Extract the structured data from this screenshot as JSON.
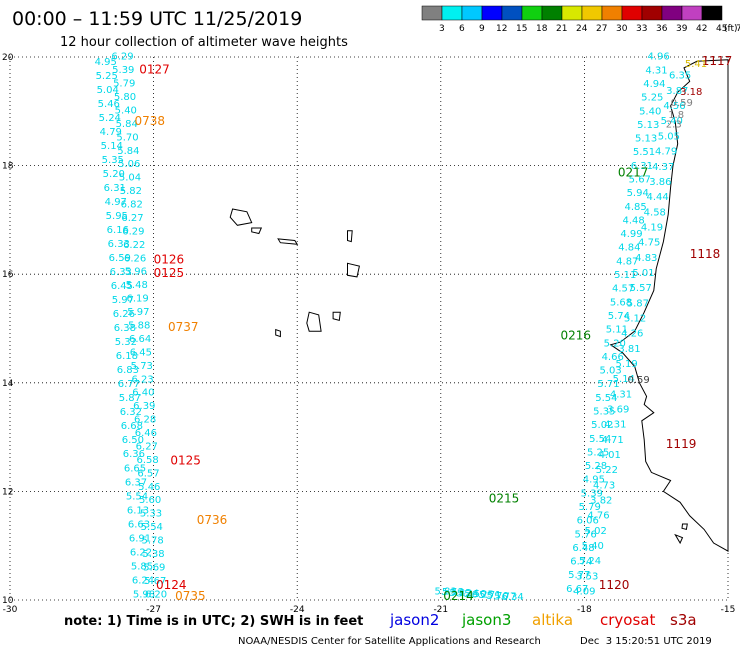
{
  "header": {
    "title": "00:00 – 11:59 UTC 11/25/2019",
    "subtitle": "12 hour collection of altimeter wave heights"
  },
  "colorbar": {
    "colors": [
      "#808080",
      "#00f0f0",
      "#00c8ff",
      "#0000ff",
      "#0050c0",
      "#10d010",
      "#008000",
      "#d8e800",
      "#f0c800",
      "#f08000",
      "#e00000",
      "#a00000",
      "#800080",
      "#c040c0",
      "#000000"
    ],
    "labels": [
      "3",
      "6",
      "9",
      "12",
      "15",
      "18",
      "21",
      "24",
      "27",
      "30",
      "33",
      "36",
      "39",
      "42",
      "45",
      "70",
      "(ft)"
    ]
  },
  "axes": {
    "lon_ticks": [
      "-30",
      "-27",
      "-24",
      "-21",
      "-18",
      "-15"
    ],
    "lat_ticks": [
      "10",
      "12",
      "14",
      "16",
      "18",
      "20"
    ]
  },
  "map_data": {
    "lon_range": [
      -30,
      -15
    ],
    "lat_range": [
      10,
      20
    ],
    "grid": "dotted",
    "tracks": [
      {
        "satellite": "jason3",
        "color": "#00d8e8",
        "start": [
          -27.65,
          19.95
        ],
        "end": [
          -26.95,
          10.05
        ],
        "values": [
          "6.29",
          "5.39",
          "5.79",
          "5.80",
          "5.40",
          "5.84",
          "5.70",
          "5.84",
          "5.06",
          "5.04",
          "5.82",
          "6.82",
          "6.27",
          "6.29",
          "6.22",
          "6.26",
          "5.96",
          "5.48",
          "6.19",
          "5.97",
          "5.88",
          "6.64",
          "6.45",
          "5.73",
          "6.23",
          "6.40",
          "6.39",
          "6.28",
          "6.46",
          "6.27",
          "6.58",
          "6.57",
          "5.46",
          "5.60",
          "5.33",
          "5.54",
          "5.78",
          "5.38",
          "5.69",
          "5.67",
          "6.20"
        ]
      },
      {
        "satellite": "jason3",
        "color": "#00d8e8",
        "start": [
          -28.0,
          19.85
        ],
        "end": [
          -27.2,
          10.05
        ],
        "values": [
          "4.95",
          "5.25",
          "5.04",
          "5.46",
          "5.24",
          "4.79",
          "5.14",
          "5.35",
          "5.20",
          "6.31",
          "4.97",
          "5.95",
          "6.16",
          "6.33",
          "6.59",
          "6.33",
          "6.45",
          "5.97",
          "6.26",
          "6.38",
          "5.32",
          "6.18",
          "6.83",
          "6.77",
          "5.87",
          "6.32",
          "6.68",
          "6.50",
          "6.36",
          "6.65",
          "6.37",
          "5.54",
          "6.13",
          "6.63",
          "6.91",
          "6.22",
          "5.85",
          "6.24",
          "5.98"
        ]
      },
      {
        "satellite": "jason3",
        "color": "#00d8e8",
        "start": [
          -16.45,
          19.95
        ],
        "end": [
          -18.15,
          10.15
        ],
        "values": [
          "4.96",
          "4.31",
          "4.94",
          "5.25",
          "5.40",
          "5.13",
          "5.13",
          "5.51",
          "6.31",
          "5.67",
          "5.94",
          "4.85",
          "4.48",
          "4.99",
          "4.84",
          "4.87",
          "5.11",
          "4.57",
          "5.68",
          "5.74",
          "5.11",
          "5.20",
          "4.66",
          "5.03",
          "5.71",
          "5.54",
          "5.35",
          "5.02",
          "5.54",
          "5.25",
          "5.28",
          "4.95",
          "5.39",
          "5.79",
          "6.06",
          "5.76",
          "6.48",
          "6.74",
          "5.77",
          "6.67"
        ]
      },
      {
        "satellite": "jason3",
        "color": "#00d8e8",
        "start": [
          -16.0,
          19.6
        ],
        "end": [
          -18.0,
          10.1
        ],
        "values": [
          "6.35",
          "3.87",
          "4.56",
          "5.40",
          "5.05",
          "4.79",
          "4.37",
          "3.86",
          "4.44",
          "4.58",
          "4.19",
          "4.75",
          "4.83",
          "5.01",
          "5.57",
          "5.87",
          "5.12",
          "4.26",
          "3.81",
          "5.19",
          "5.14",
          "4.31",
          "3.69",
          "4.31",
          "4.71",
          "4.01",
          "5.22",
          "4.73",
          "3.82",
          "4.76",
          "5.02",
          "5.40",
          "5.24",
          "3.53",
          "4.09"
        ]
      },
      {
        "satellite": "jason3",
        "color": "#00d8e8",
        "start": [
          -19.5,
          10.0
        ],
        "end": [
          -20.9,
          10.1
        ],
        "values": [
          "6.34",
          "5.77",
          "5.70",
          "5.71",
          "6.25",
          "5.50",
          "5.34",
          "5.82",
          "5.53",
          "5.83"
        ]
      }
    ],
    "pass_labels": [
      {
        "text": "0127",
        "color": "#e00000",
        "lon": -27.3,
        "lat": 19.7
      },
      {
        "text": "0738",
        "color": "#f08000",
        "lon": -27.4,
        "lat": 18.75
      },
      {
        "text": "0126",
        "color": "#e00000",
        "lon": -27.0,
        "lat": 16.2
      },
      {
        "text": "0125",
        "color": "#e00000",
        "lon": -27.0,
        "lat": 15.95
      },
      {
        "text": "0737",
        "color": "#f08000",
        "lon": -26.7,
        "lat": 14.95
      },
      {
        "text": "0125",
        "color": "#e00000",
        "lon": -26.65,
        "lat": 12.5
      },
      {
        "text": "0736",
        "color": "#f08000",
        "lon": -26.1,
        "lat": 11.4
      },
      {
        "text": "0124",
        "color": "#e00000",
        "lon": -26.95,
        "lat": 10.2
      },
      {
        "text": "0735",
        "color": "#f08000",
        "lon": -26.55,
        "lat": 10.0
      },
      {
        "text": "0217",
        "color": "#008000",
        "lon": -17.3,
        "lat": 17.8
      },
      {
        "text": "0216",
        "color": "#008000",
        "lon": -18.5,
        "lat": 14.8
      },
      {
        "text": "0215",
        "color": "#008000",
        "lon": -20.0,
        "lat": 11.8
      },
      {
        "text": "0214",
        "color": "#008000",
        "lon": -20.95,
        "lat": 10.0
      },
      {
        "text": "1117",
        "color": "#a00000",
        "lon": -15.55,
        "lat": 19.85
      },
      {
        "text": "1118",
        "color": "#a00000",
        "lon": -15.8,
        "lat": 16.3
      },
      {
        "text": "1119",
        "color": "#a00000",
        "lon": -16.3,
        "lat": 12.8
      },
      {
        "text": "1120",
        "color": "#a00000",
        "lon": -17.7,
        "lat": 10.2
      }
    ],
    "extra_values": [
      {
        "text": "5.41",
        "color": "#d8b800",
        "lon": -15.9,
        "lat": 19.82
      },
      {
        "text": "3.18",
        "color": "#a00000",
        "lon": -16.0,
        "lat": 19.3
      },
      {
        "text": "0.59",
        "color": "#808080",
        "lon": -16.2,
        "lat": 19.1
      },
      {
        "text": "1.8",
        "color": "#808080",
        "lon": -16.25,
        "lat": 18.88
      },
      {
        "text": "2.3",
        "color": "#808080",
        "lon": -16.3,
        "lat": 18.7
      },
      {
        "text": "0.59",
        "color": "#404040",
        "lon": -17.1,
        "lat": 14.0
      }
    ],
    "land": [
      {
        "name": "canary-coast",
        "points": [
          [
            -15.0,
            19.95
          ],
          [
            -15.65,
            19.92
          ],
          [
            -15.92,
            19.8
          ],
          [
            -15.8,
            19.55
          ],
          [
            -16.05,
            19.35
          ],
          [
            -16.2,
            19.1
          ],
          [
            -16.1,
            18.8
          ],
          [
            -16.05,
            18.4
          ],
          [
            -16.15,
            18.0
          ],
          [
            -16.2,
            17.6
          ],
          [
            -16.25,
            17.1
          ],
          [
            -16.35,
            16.6
          ],
          [
            -16.5,
            16.1
          ],
          [
            -16.55,
            15.7
          ],
          [
            -16.75,
            15.3
          ],
          [
            -16.95,
            14.95
          ],
          [
            -17.25,
            14.75
          ],
          [
            -17.45,
            14.7
          ],
          [
            -17.2,
            14.55
          ],
          [
            -16.95,
            14.3
          ],
          [
            -16.85,
            14.0
          ],
          [
            -16.7,
            13.75
          ],
          [
            -16.75,
            13.6
          ],
          [
            -16.55,
            13.45
          ],
          [
            -16.8,
            13.3
          ],
          [
            -16.75,
            12.95
          ],
          [
            -16.72,
            12.55
          ],
          [
            -16.6,
            12.35
          ],
          [
            -16.2,
            12.2
          ],
          [
            -16.35,
            12.0
          ],
          [
            -16.0,
            11.8
          ],
          [
            -15.8,
            11.55
          ],
          [
            -15.5,
            11.3
          ],
          [
            -15.3,
            11.05
          ],
          [
            -15.0,
            10.9
          ],
          [
            -15.0,
            19.95
          ]
        ]
      }
    ],
    "islands": [
      {
        "name": "santo-antao",
        "points": [
          [
            -25.35,
            17.2
          ],
          [
            -25.05,
            17.15
          ],
          [
            -24.95,
            16.95
          ],
          [
            -25.25,
            16.9
          ],
          [
            -25.4,
            17.05
          ]
        ]
      },
      {
        "name": "sao-vicente",
        "points": [
          [
            -24.95,
            16.85
          ],
          [
            -24.75,
            16.85
          ],
          [
            -24.8,
            16.75
          ],
          [
            -24.95,
            16.78
          ]
        ]
      },
      {
        "name": "sao-nicolau",
        "points": [
          [
            -24.4,
            16.65
          ],
          [
            -24.05,
            16.62
          ],
          [
            -24.0,
            16.55
          ],
          [
            -24.35,
            16.58
          ]
        ]
      },
      {
        "name": "sal",
        "points": [
          [
            -22.95,
            16.8
          ],
          [
            -22.85,
            16.8
          ],
          [
            -22.87,
            16.6
          ],
          [
            -22.95,
            16.62
          ]
        ]
      },
      {
        "name": "boa-vista",
        "points": [
          [
            -22.95,
            16.2
          ],
          [
            -22.7,
            16.15
          ],
          [
            -22.75,
            15.95
          ],
          [
            -22.95,
            15.98
          ]
        ]
      },
      {
        "name": "maio",
        "points": [
          [
            -23.25,
            15.3
          ],
          [
            -23.1,
            15.3
          ],
          [
            -23.12,
            15.15
          ],
          [
            -23.25,
            15.18
          ]
        ]
      },
      {
        "name": "santiago",
        "points": [
          [
            -23.75,
            15.3
          ],
          [
            -23.55,
            15.25
          ],
          [
            -23.5,
            14.95
          ],
          [
            -23.75,
            14.95
          ],
          [
            -23.8,
            15.1
          ]
        ]
      },
      {
        "name": "fogo",
        "points": [
          [
            -24.45,
            14.98
          ],
          [
            -24.35,
            14.95
          ],
          [
            -24.35,
            14.85
          ],
          [
            -24.45,
            14.88
          ]
        ]
      },
      {
        "name": "bijagos-1",
        "points": [
          [
            -15.95,
            11.4
          ],
          [
            -15.85,
            11.4
          ],
          [
            -15.87,
            11.3
          ],
          [
            -15.96,
            11.32
          ]
        ]
      },
      {
        "name": "bijagos-2",
        "points": [
          [
            -16.1,
            11.2
          ],
          [
            -15.95,
            11.15
          ],
          [
            -16.0,
            11.05
          ]
        ]
      }
    ]
  },
  "legend": {
    "note": "note: 1) Time is in UTC; 2) SWH is in feet",
    "satellites": [
      {
        "name": "jason2",
        "color": "#0000e0"
      },
      {
        "name": "jason3",
        "color": "#00a000"
      },
      {
        "name": "altika",
        "color": "#f0a000"
      },
      {
        "name": "cryosat",
        "color": "#e00000"
      },
      {
        "name": "s3a",
        "color": "#a00000"
      }
    ]
  },
  "footer": {
    "credit": "NOAA/NESDIS Center for Satellite Applications and Research",
    "timestamp": "Dec  3 15:20:51 UTC 2019"
  }
}
